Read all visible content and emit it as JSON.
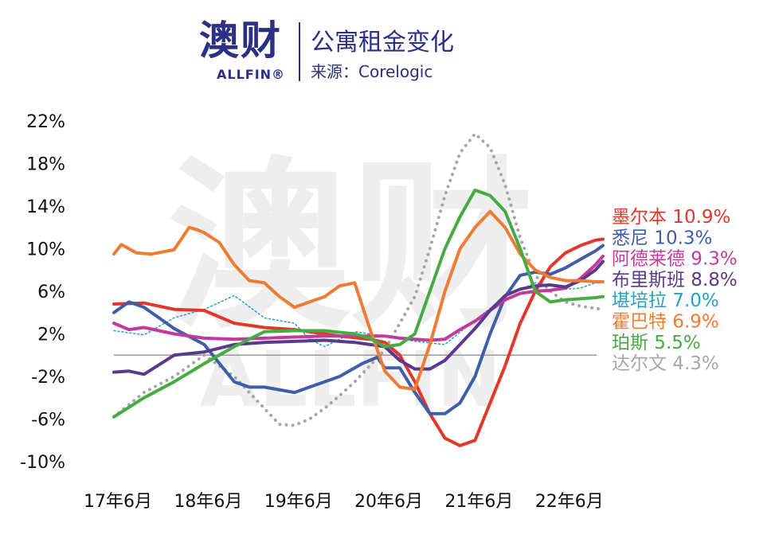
{
  "header": {
    "logo_cn": "澳财",
    "logo_en": "ALLFIN®",
    "title": "公寓租金变化",
    "source": "来源：Corelogic"
  },
  "watermark": {
    "cn": "澳财",
    "en": "ALLFIN"
  },
  "chart_data": {
    "type": "line",
    "title": "公寓租金变化",
    "ylim": [
      -10,
      22
    ],
    "yticks": [
      22,
      18,
      14,
      10,
      6,
      2,
      -2,
      -6,
      -10
    ],
    "ytick_labels": [
      "22%",
      "18%",
      "14%",
      "10%",
      "6%",
      "2%",
      "-2%",
      "-6%",
      "-10%"
    ],
    "xlim": [
      0,
      65
    ],
    "x_categories": [
      "17年6月",
      "18年6月",
      "19年6月",
      "20年6月",
      "21年6月",
      "22年6月"
    ],
    "x_category_positions": [
      0,
      12,
      24,
      36,
      48,
      60
    ],
    "zero_line": true,
    "grid": false,
    "legend_position": "right",
    "series": [
      {
        "name": "墨尔本",
        "label": "墨尔本 10.9%",
        "final": 10.9,
        "color": "#e2372b",
        "dashed": false,
        "x": [
          0,
          4,
          8,
          12,
          16,
          20,
          24,
          28,
          30,
          34,
          36,
          38,
          40,
          42,
          44,
          46,
          48,
          50,
          52,
          54,
          56,
          58,
          60,
          62,
          64,
          65
        ],
        "y": [
          4.8,
          4.9,
          4.3,
          4.2,
          3.0,
          2.6,
          2.4,
          2.0,
          1.8,
          1.5,
          1.2,
          0,
          -2.5,
          -5.5,
          -7.8,
          -8.5,
          -8.0,
          -4.5,
          -1,
          3,
          6,
          8.3,
          9.6,
          10.3,
          10.8,
          10.9
        ]
      },
      {
        "name": "悉尼",
        "label": "悉尼 10.3%",
        "final": 10.3,
        "color": "#3f5ea8",
        "dashed": false,
        "x": [
          0,
          2,
          4,
          8,
          12,
          16,
          18,
          20,
          24,
          26,
          28,
          30,
          33,
          35,
          36,
          38,
          40,
          42,
          44,
          46,
          48,
          50,
          52,
          54,
          56,
          58,
          60,
          62,
          64,
          65
        ],
        "y": [
          4.0,
          5.0,
          4.5,
          2.5,
          1.0,
          -2.5,
          -3.0,
          -3.0,
          -3.5,
          -3.0,
          -2.5,
          -2.0,
          -0.8,
          -0.2,
          -1.2,
          -1.2,
          -3.5,
          -5.5,
          -5.5,
          -4.5,
          -2.0,
          2.0,
          5.5,
          7.5,
          7.8,
          7.6,
          8.2,
          9.0,
          9.8,
          10.3
        ]
      },
      {
        "name": "阿德莱德",
        "label": "阿德莱德 9.3%",
        "final": 9.3,
        "color": "#c23b9b",
        "dashed": false,
        "x": [
          0,
          2,
          4,
          8,
          12,
          16,
          20,
          24,
          28,
          32,
          36,
          38,
          40,
          42,
          44,
          46,
          48,
          50,
          52,
          54,
          56,
          58,
          60,
          62,
          64,
          65
        ],
        "y": [
          3.0,
          2.4,
          2.6,
          2.0,
          1.6,
          1.5,
          1.6,
          1.7,
          1.8,
          1.8,
          1.8,
          1.6,
          1.5,
          1.4,
          1.5,
          2.4,
          3.2,
          4.2,
          5.2,
          5.8,
          6.0,
          6.1,
          6.3,
          7.2,
          8.5,
          9.3
        ]
      },
      {
        "name": "布里斯班",
        "label": "布里斯班 8.8%",
        "final": 8.8,
        "color": "#5a3a8c",
        "dashed": false,
        "x": [
          0,
          2,
          4,
          8,
          12,
          16,
          20,
          24,
          28,
          32,
          36,
          38,
          40,
          42,
          44,
          46,
          48,
          50,
          52,
          54,
          56,
          58,
          60,
          62,
          64,
          65
        ],
        "y": [
          -1.6,
          -1.5,
          -1.8,
          0,
          0.3,
          1.0,
          1.2,
          1.3,
          1.4,
          1.2,
          0.8,
          -0.5,
          -1.3,
          -1.3,
          -0.5,
          1.0,
          2.5,
          4.2,
          5.6,
          6.2,
          6.5,
          6.6,
          6.4,
          7.0,
          8.0,
          8.8
        ]
      },
      {
        "name": "堪培拉",
        "label": "堪培拉 7.0%",
        "final": 7.0,
        "color": "#2aa0c0",
        "dashed": true,
        "x": [
          0,
          4,
          8,
          12,
          16,
          20,
          24,
          26,
          28,
          30,
          32,
          36,
          40,
          44,
          48,
          52,
          56,
          60,
          62,
          64,
          65
        ],
        "y": [
          2.3,
          1.9,
          3.5,
          4.3,
          5.6,
          3.5,
          3.0,
          1.5,
          0.8,
          1.5,
          2.2,
          1.8,
          1.3,
          1.0,
          3.3,
          5.5,
          6.8,
          6.2,
          6.3,
          6.8,
          7.0
        ]
      },
      {
        "name": "霍巴特",
        "label": "霍巴特 6.9%",
        "final": 6.9,
        "color": "#ee7c34",
        "dashed": false,
        "x": [
          0,
          1,
          3,
          5,
          8,
          10,
          11,
          12,
          14,
          16,
          18,
          20,
          22,
          24,
          26,
          28,
          30,
          32,
          34,
          36,
          38,
          40,
          42,
          44,
          46,
          48,
          50,
          52,
          54,
          56,
          58,
          60,
          62,
          64,
          65
        ],
        "y": [
          9.5,
          10.4,
          9.6,
          9.5,
          9.9,
          12.0,
          11.8,
          11.5,
          10.6,
          8.5,
          7.0,
          6.8,
          5.5,
          4.5,
          5.0,
          5.5,
          6.5,
          6.8,
          2.5,
          -1.5,
          -3.0,
          -3.2,
          1.0,
          6.0,
          10.0,
          12.0,
          13.5,
          12.0,
          9.5,
          8.0,
          7.3,
          7.0,
          7.0,
          6.9,
          6.9
        ]
      },
      {
        "name": "珀斯",
        "label": "珀斯 5.5%",
        "final": 5.5,
        "color": "#47ab44",
        "dashed": false,
        "x": [
          0,
          4,
          8,
          12,
          16,
          20,
          24,
          28,
          32,
          34,
          36,
          38,
          40,
          42,
          44,
          46,
          48,
          50,
          52,
          54,
          56,
          58,
          60,
          62,
          64,
          65
        ],
        "y": [
          -5.8,
          -4.0,
          -2.5,
          -0.8,
          0.8,
          2.2,
          2.3,
          2.3,
          2.0,
          1.6,
          0.8,
          1.0,
          2.0,
          6.0,
          10.0,
          13.0,
          15.5,
          15.0,
          13.5,
          10.0,
          6.0,
          5.0,
          5.2,
          5.3,
          5.4,
          5.5
        ]
      },
      {
        "name": "达尔文",
        "label": "达尔文 4.3%",
        "final": 4.3,
        "color": "#a7a7a7",
        "dashed": true,
        "x": [
          0,
          4,
          8,
          12,
          16,
          20,
          22,
          24,
          26,
          28,
          30,
          32,
          34,
          36,
          38,
          40,
          42,
          44,
          46,
          48,
          50,
          52,
          54,
          56,
          58,
          60,
          62,
          64,
          65
        ],
        "y": [
          -5.8,
          -3.5,
          -2.0,
          0,
          -2.0,
          -5.0,
          -6.5,
          -6.6,
          -6.0,
          -5.0,
          -3.8,
          -2.5,
          -1.0,
          0.5,
          3.0,
          5.5,
          10.0,
          15.0,
          19.0,
          20.8,
          19.5,
          16.0,
          11.0,
          7.5,
          6.0,
          5.0,
          4.6,
          4.4,
          4.3
        ]
      }
    ]
  }
}
